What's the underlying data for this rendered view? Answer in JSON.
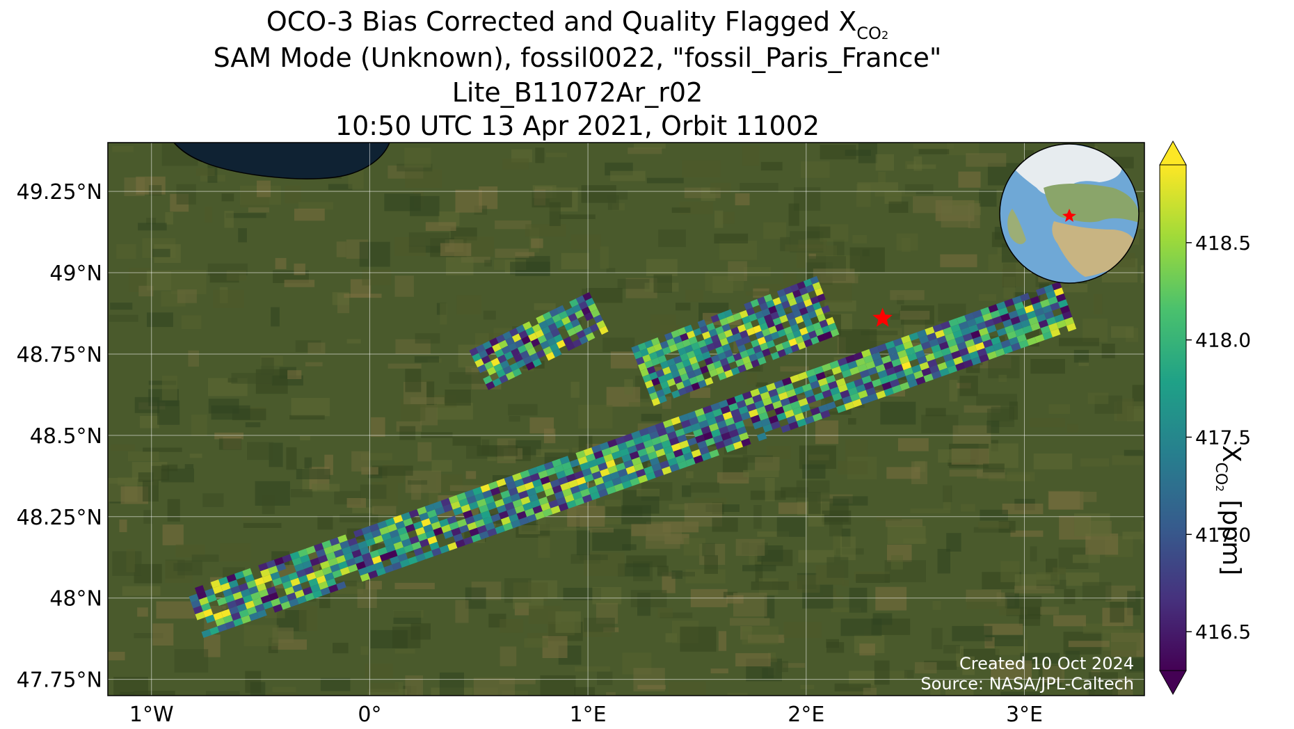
{
  "title": {
    "line1_prefix": "OCO-3 Bias Corrected and Quality Flagged X",
    "line1_sub": "CO",
    "line1_sub2": "2",
    "line2": "SAM Mode (Unknown), fossil0022, \"fossil_Paris_France\"",
    "line3": "Lite_B11072Ar_r02",
    "line4": "10:50 UTC 13 Apr 2021, Orbit 11002"
  },
  "map": {
    "lon_range": [
      -1.2,
      3.55
    ],
    "lat_range": [
      47.7,
      49.4
    ],
    "gridlines": true,
    "lon_ticks": [
      {
        "value": -1,
        "label": "1°W"
      },
      {
        "value": 0,
        "label": "0°"
      },
      {
        "value": 1,
        "label": "1°E"
      },
      {
        "value": 2,
        "label": "2°E"
      },
      {
        "value": 3,
        "label": "3°E"
      }
    ],
    "lat_ticks": [
      {
        "value": 49.25,
        "label": "49.25°N"
      },
      {
        "value": 49.0,
        "label": "49°N"
      },
      {
        "value": 48.75,
        "label": "48.75°N"
      },
      {
        "value": 48.5,
        "label": "48.5°N"
      },
      {
        "value": 48.25,
        "label": "48.25°N"
      },
      {
        "value": 48.0,
        "label": "48°N"
      },
      {
        "value": 47.75,
        "label": "47.75°N"
      }
    ],
    "target_marker": {
      "lon": 2.35,
      "lat": 48.86,
      "color": "#ff0000"
    },
    "inset_globe": true,
    "swaths": [
      {
        "name": "main",
        "lon_start": -0.8,
        "lat_start": 47.95,
        "lon_end": 3.2,
        "lat_end": 48.9,
        "rows": 8,
        "cols": 110
      },
      {
        "name": "north-left",
        "lon_start": 0.5,
        "lat_start": 48.7,
        "lon_end": 1.05,
        "lat_end": 48.88,
        "rows": 7,
        "cols": 18
      },
      {
        "name": "north-middle",
        "lon_start": 1.25,
        "lat_start": 48.68,
        "lon_end": 2.1,
        "lat_end": 48.9,
        "rows": 10,
        "cols": 28
      }
    ]
  },
  "colorbar": {
    "label_prefix": "X",
    "label_sub": "CO",
    "label_sub2": "2",
    "label_suffix": " [ppm]",
    "min": 416.3,
    "max": 418.9,
    "extend": "both",
    "ticks": [
      {
        "value": 416.5,
        "label": "416.5"
      },
      {
        "value": 417.0,
        "label": "417.0"
      },
      {
        "value": 417.5,
        "label": "417.5"
      },
      {
        "value": 418.0,
        "label": "418.0"
      },
      {
        "value": 418.5,
        "label": "418.5"
      }
    ],
    "colormap": [
      "#440154",
      "#46327e",
      "#365c8d",
      "#277f8e",
      "#1fa187",
      "#4ac16d",
      "#a0da39",
      "#fde725"
    ]
  },
  "credits": {
    "created": "Created 10 Oct 2024",
    "source": "Source: NASA/JPL-Caltech"
  }
}
